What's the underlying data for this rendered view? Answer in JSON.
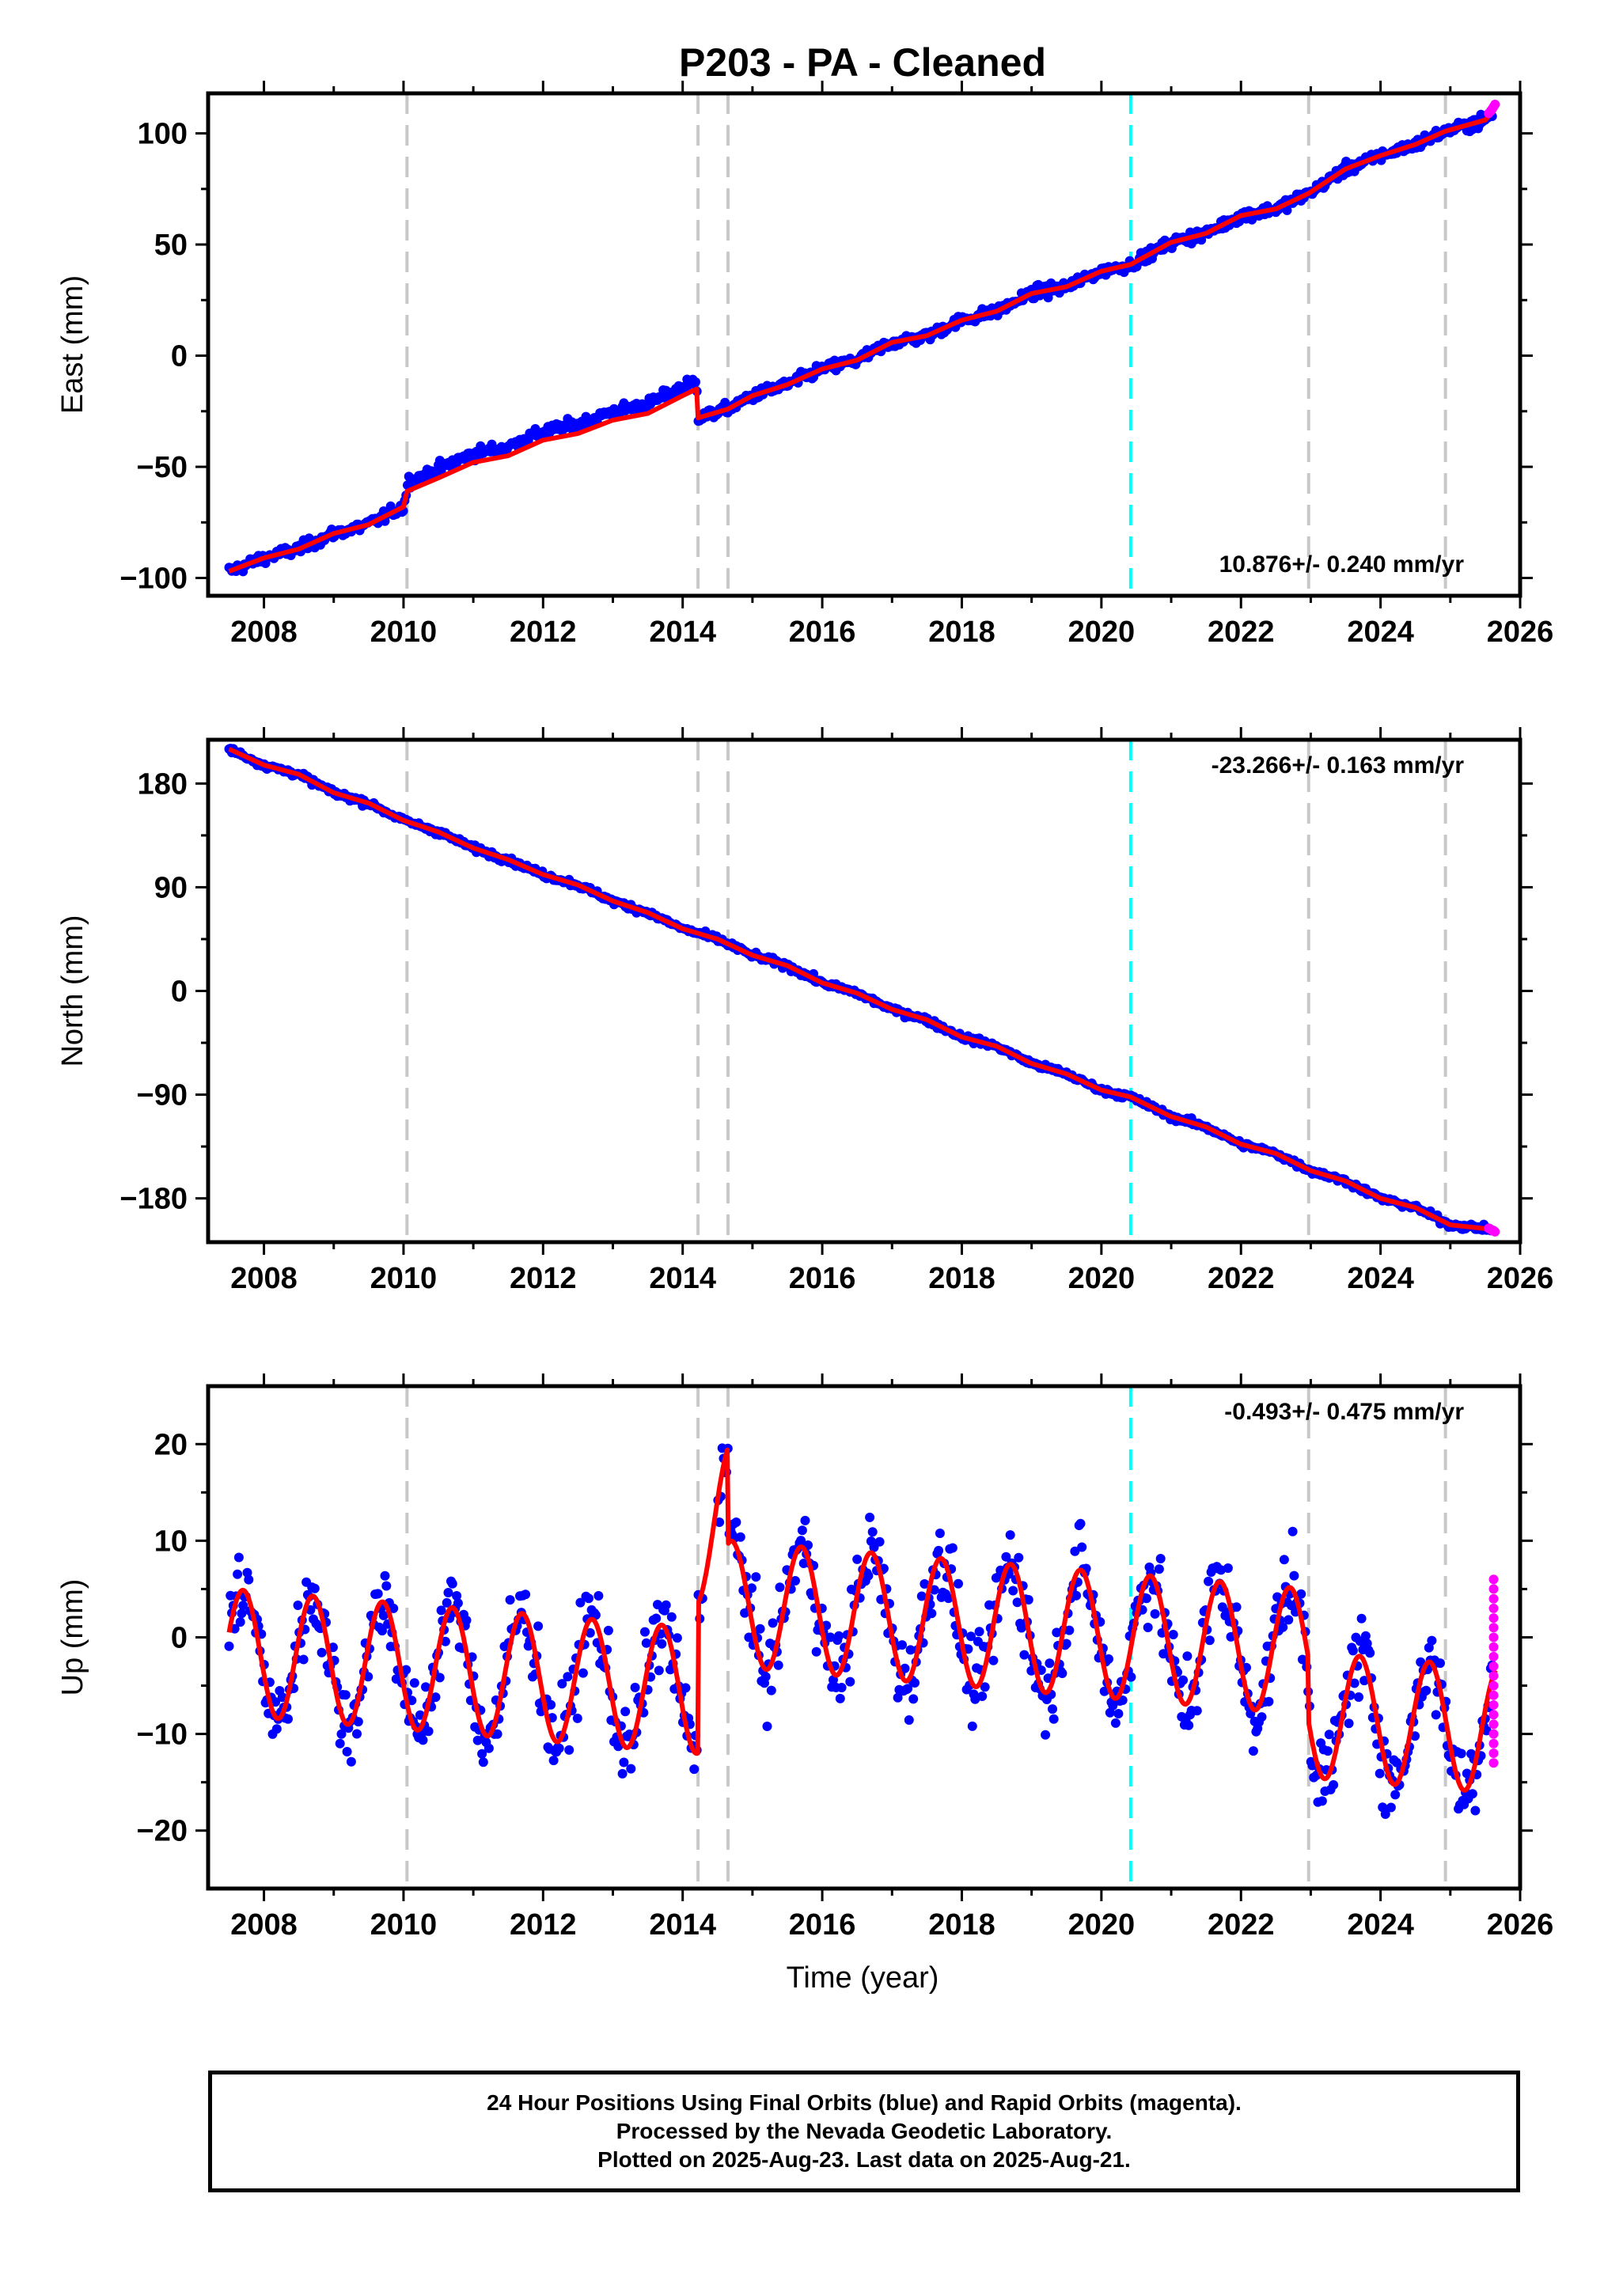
{
  "figure": {
    "title": "P203  - PA - Cleaned",
    "xlabel": "Time (year)"
  },
  "colors": {
    "final_orbits": "#0000ff",
    "rapid_orbits": "#ff00ff",
    "model": "#ff0000",
    "event_line": "#c8c8c8",
    "highlight_event_line": "#00ffff",
    "frame": "#000000"
  },
  "chart_data": [
    {
      "type": "scatter",
      "name": "east",
      "ylabel": "East (mm)",
      "xlim": [
        2007.2,
        2026.0
      ],
      "ylim": [
        -108,
        118
      ],
      "xticks": [
        2008,
        2010,
        2012,
        2014,
        2016,
        2018,
        2020,
        2022,
        2024,
        2026
      ],
      "yticks": [
        -100,
        -50,
        0,
        50,
        100
      ],
      "ytick_labels": [
        "−100",
        "−50",
        "0",
        "50",
        "100"
      ],
      "rate_label": "10.876+/- 0.240 mm/yr",
      "rate_label_position": "bottom-right",
      "event_lines": [
        2010.05,
        2014.22,
        2014.65,
        2022.97,
        2024.93
      ],
      "highlight_event_lines": [
        2020.42
      ],
      "trend": {
        "rate": 10.876,
        "value_at_2007_5": -99
      },
      "model_points": [
        [
          2007.5,
          -97
        ],
        [
          2008.0,
          -91
        ],
        [
          2008.5,
          -87
        ],
        [
          2009.0,
          -80
        ],
        [
          2009.5,
          -76
        ],
        [
          2010.0,
          -68
        ],
        [
          2010.05,
          -61
        ],
        [
          2010.5,
          -55
        ],
        [
          2011.0,
          -48
        ],
        [
          2011.5,
          -45
        ],
        [
          2012.0,
          -38
        ],
        [
          2012.5,
          -35
        ],
        [
          2013.0,
          -29
        ],
        [
          2013.5,
          -26
        ],
        [
          2014.0,
          -18
        ],
        [
          2014.2,
          -15
        ],
        [
          2014.22,
          -28
        ],
        [
          2014.65,
          -24
        ],
        [
          2015.0,
          -18
        ],
        [
          2015.5,
          -13
        ],
        [
          2016.0,
          -6
        ],
        [
          2016.5,
          -2
        ],
        [
          2017.0,
          6
        ],
        [
          2017.5,
          9
        ],
        [
          2018.0,
          16
        ],
        [
          2018.5,
          20
        ],
        [
          2019.0,
          28
        ],
        [
          2019.5,
          31
        ],
        [
          2020.0,
          38
        ],
        [
          2020.42,
          41
        ],
        [
          2021.0,
          51
        ],
        [
          2021.5,
          55
        ],
        [
          2022.0,
          63
        ],
        [
          2022.5,
          66
        ],
        [
          2022.97,
          73
        ],
        [
          2023.5,
          84
        ],
        [
          2024.0,
          90
        ],
        [
          2024.5,
          95
        ],
        [
          2024.93,
          101
        ],
        [
          2025.5,
          106
        ],
        [
          2025.62,
          110
        ]
      ],
      "rapid_points": [
        [
          2025.55,
          109
        ],
        [
          2025.58,
          110
        ],
        [
          2025.6,
          111
        ],
        [
          2025.62,
          112
        ],
        [
          2025.64,
          113
        ]
      ]
    },
    {
      "type": "scatter",
      "name": "north",
      "ylabel": "North (mm)",
      "xlim": [
        2007.2,
        2026.0
      ],
      "ylim": [
        -218,
        218
      ],
      "xticks": [
        2008,
        2010,
        2012,
        2014,
        2016,
        2018,
        2020,
        2022,
        2024,
        2026
      ],
      "yticks": [
        -180,
        -90,
        0,
        90,
        180
      ],
      "ytick_labels": [
        "−180",
        "−90",
        "0",
        "90",
        "180"
      ],
      "rate_label": "-23.266+/- 0.163 mm/yr",
      "rate_label_position": "top-right",
      "event_lines": [
        2010.05,
        2014.22,
        2014.65,
        2022.97,
        2024.93
      ],
      "highlight_event_lines": [
        2020.42
      ],
      "trend": {
        "rate": -23.266,
        "value_at_2007_5": 210
      },
      "model_points": [
        [
          2007.5,
          210
        ],
        [
          2008.0,
          196
        ],
        [
          2008.5,
          188
        ],
        [
          2009.0,
          172
        ],
        [
          2009.5,
          163
        ],
        [
          2010.0,
          148
        ],
        [
          2010.5,
          138
        ],
        [
          2011.0,
          124
        ],
        [
          2011.5,
          114
        ],
        [
          2012.0,
          101
        ],
        [
          2012.5,
          92
        ],
        [
          2013.0,
          78
        ],
        [
          2013.5,
          68
        ],
        [
          2014.0,
          54
        ],
        [
          2014.5,
          45
        ],
        [
          2015.0,
          31
        ],
        [
          2015.5,
          22
        ],
        [
          2016.0,
          7
        ],
        [
          2016.5,
          -2
        ],
        [
          2017.0,
          -16
        ],
        [
          2017.5,
          -25
        ],
        [
          2018.0,
          -40
        ],
        [
          2018.5,
          -48
        ],
        [
          2019.0,
          -63
        ],
        [
          2019.5,
          -72
        ],
        [
          2020.0,
          -86
        ],
        [
          2020.42,
          -92
        ],
        [
          2021.0,
          -109
        ],
        [
          2021.5,
          -118
        ],
        [
          2022.0,
          -133
        ],
        [
          2022.5,
          -141
        ],
        [
          2023.0,
          -156
        ],
        [
          2023.5,
          -165
        ],
        [
          2024.0,
          -180
        ],
        [
          2024.5,
          -188
        ],
        [
          2025.0,
          -203
        ],
        [
          2025.62,
          -207
        ]
      ],
      "rapid_points": [
        [
          2025.55,
          -206
        ],
        [
          2025.58,
          -207
        ],
        [
          2025.6,
          -208
        ],
        [
          2025.62,
          -208
        ],
        [
          2025.64,
          -209
        ]
      ]
    },
    {
      "type": "scatter",
      "name": "up",
      "ylabel": "Up (mm)",
      "xlim": [
        2007.2,
        2026.0
      ],
      "ylim": [
        -26,
        26
      ],
      "xticks": [
        2008,
        2010,
        2012,
        2014,
        2016,
        2018,
        2020,
        2022,
        2024,
        2026
      ],
      "yticks": [
        -20,
        -10,
        0,
        10,
        20
      ],
      "ytick_labels": [
        "−20",
        "−10",
        "0",
        "10",
        "20"
      ],
      "rate_label": "-0.493+/- 0.475 mm/yr",
      "rate_label_position": "top-right",
      "event_lines": [
        2010.05,
        2014.22,
        2014.65,
        2022.97,
        2024.93
      ],
      "highlight_event_lines": [
        2020.42
      ],
      "seasonal_amplitude": 6.5,
      "seasonal_peak_phase": 0.7,
      "model_offsets": [
        {
          "from": 2007.5,
          "to": 2014.22,
          "level": -1.5,
          "slope": -0.6
        },
        {
          "from": 2014.22,
          "to": 2014.65,
          "level": 10.0,
          "slope": 8.0
        },
        {
          "from": 2014.65,
          "to": 2022.97,
          "level": 3.5,
          "slope": -0.6
        },
        {
          "from": 2022.97,
          "to": 2025.65,
          "level": -8.0,
          "slope": -0.6
        }
      ],
      "rapid_points": [
        [
          2025.62,
          6
        ],
        [
          2025.62,
          5
        ],
        [
          2025.62,
          4
        ],
        [
          2025.62,
          3
        ],
        [
          2025.62,
          2
        ],
        [
          2025.62,
          1
        ],
        [
          2025.62,
          0
        ],
        [
          2025.62,
          -1
        ],
        [
          2025.62,
          -2
        ],
        [
          2025.62,
          -3
        ],
        [
          2025.62,
          -4
        ],
        [
          2025.62,
          -5
        ],
        [
          2025.62,
          -6
        ],
        [
          2025.62,
          -7
        ],
        [
          2025.62,
          -8
        ],
        [
          2025.62,
          -9
        ],
        [
          2025.62,
          -10
        ],
        [
          2025.62,
          -11
        ],
        [
          2025.62,
          -12
        ],
        [
          2025.62,
          -13
        ]
      ]
    }
  ],
  "footer": {
    "line1": "24 Hour Positions Using Final Orbits (blue) and Rapid Orbits (magenta).",
    "line2": "Processed by the Nevada Geodetic Laboratory.",
    "line3": "Plotted on 2025-Aug-23. Last data on 2025-Aug-21."
  }
}
